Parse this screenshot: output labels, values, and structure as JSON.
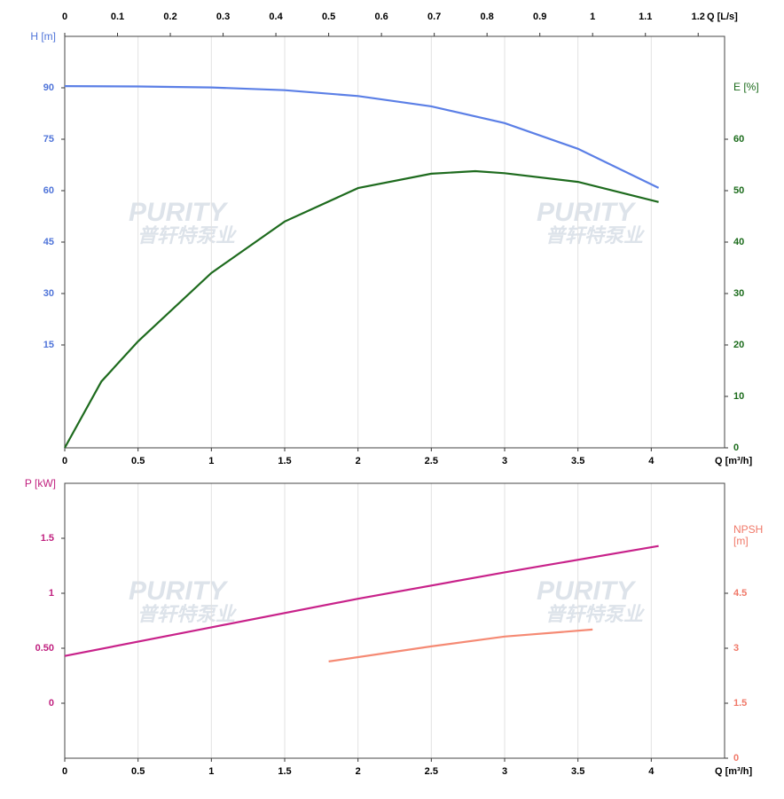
{
  "chart_data": [
    {
      "type": "line",
      "xlabel": "Q [m³/h]",
      "xlim": [
        0,
        4.5
      ],
      "xticks": [
        0,
        0.5,
        1,
        1.5,
        2,
        2.5,
        3,
        3.5,
        4
      ],
      "x2label": "Q [L/s]",
      "x2lim": [
        0,
        1.25
      ],
      "x2ticks": [
        0,
        0.1,
        0.2,
        0.3,
        0.4,
        0.5,
        0.6,
        0.7,
        0.8,
        0.9,
        1,
        1.1,
        1.2
      ],
      "ylabel": "H [m]",
      "ylim": [
        -15,
        105
      ],
      "yticks": [
        15,
        30,
        45,
        60,
        75,
        90
      ],
      "ycolor": "#4f74d9",
      "y2label": [
        "E [%]"
      ],
      "y2lim": [
        0,
        80
      ],
      "y2ticks": [
        0,
        10,
        20,
        30,
        40,
        50,
        60
      ],
      "y2color": "#1b6b1b",
      "grid": true,
      "watermark": [
        "PURITY",
        "普轩特泵业"
      ],
      "series": [
        {
          "name": "H",
          "color": "#5b7fe6",
          "x": [
            0,
            0.5,
            1,
            1.5,
            2,
            2.5,
            3,
            3.5,
            4.05
          ],
          "values": [
            90.5,
            90.4,
            90.1,
            89.3,
            87.6,
            84.6,
            79.7,
            72.2,
            60.8
          ]
        },
        {
          "name": "E",
          "color": "#1e6b1e",
          "axis": "y2",
          "x": [
            0,
            0.25,
            0.5,
            1,
            1.5,
            2,
            2.5,
            2.8,
            3,
            3.5,
            4.05
          ],
          "values": [
            0,
            12.9,
            20.7,
            34,
            44,
            50.5,
            53.3,
            53.8,
            53.4,
            51.7,
            47.8
          ]
        }
      ]
    },
    {
      "type": "line",
      "xlabel": "Q [m³/h]",
      "xlim": [
        0,
        4.5
      ],
      "xticks": [
        0,
        0.5,
        1,
        1.5,
        2,
        2.5,
        3,
        3.5,
        4
      ],
      "ylabel": "P [kW]",
      "ylim": [
        -0.5,
        2.0
      ],
      "yticks": [
        0,
        {
          "value": 0.5,
          "label": "0.50"
        },
        1,
        1.5
      ],
      "ycolor": "#c0207f",
      "y2label": [
        "NPSH",
        "[m]"
      ],
      "y2lim": [
        0,
        7.5
      ],
      "y2ticks": [
        0,
        1.5,
        3,
        4.5
      ],
      "y2color": "#f07868",
      "grid": true,
      "watermark": [
        "PURITY",
        "普轩特泵业"
      ],
      "series": [
        {
          "name": "P",
          "color": "#c8228a",
          "x": [
            0,
            1,
            2,
            3,
            4.05
          ],
          "values": [
            0.43,
            0.69,
            0.95,
            1.19,
            1.43
          ]
        },
        {
          "name": "NPSH",
          "color": "#f58a74",
          "axis": "y2",
          "x": [
            1.8,
            2.5,
            3,
            3.6
          ],
          "values": [
            2.64,
            3.05,
            3.32,
            3.51
          ]
        }
      ]
    }
  ]
}
